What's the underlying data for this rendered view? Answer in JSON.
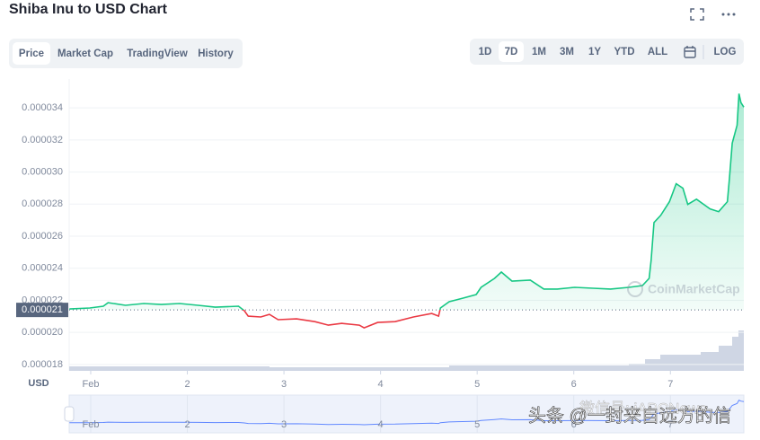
{
  "header": {
    "title": "Shiba Inu to USD Chart"
  },
  "tabs": [
    "Price",
    "Market Cap",
    "TradingView",
    "History"
  ],
  "selected_tab": 0,
  "ranges": [
    "1D",
    "7D",
    "1M",
    "3M",
    "1Y",
    "YTD",
    "ALL",
    "LOG"
  ],
  "selected_range": 1,
  "overlay": [
    "微信号: iAPCNews",
    "头条 @一封来自远方的信"
  ],
  "chart_data": {
    "type": "line",
    "y_axis_label": "USD",
    "watermark": "CoinMarketCap",
    "x": [
      0.78,
      0.99,
      1.13,
      1.18,
      1.36,
      1.55,
      1.73,
      1.92,
      2.11,
      2.29,
      2.53,
      2.59,
      2.63,
      2.76,
      2.85,
      2.94,
      3.13,
      3.32,
      3.46,
      3.6,
      3.78,
      3.83,
      3.97,
      4.15,
      4.34,
      4.53,
      4.6,
      4.62,
      4.71,
      4.85,
      4.99,
      5.04,
      5.18,
      5.25,
      5.36,
      5.55,
      5.69,
      5.83,
      6.01,
      6.2,
      6.38,
      6.57,
      6.71,
      6.78,
      6.8,
      6.83,
      6.9,
      6.99,
      7.06,
      7.13,
      7.18,
      7.27,
      7.41,
      7.5,
      7.59,
      7.61,
      7.64,
      7.69,
      7.71,
      7.73,
      7.76
    ],
    "values": [
      2.146e-05,
      2.152e-05,
      2.163e-05,
      2.185e-05,
      2.169e-05,
      2.18e-05,
      2.174e-05,
      2.18e-05,
      2.169e-05,
      2.157e-05,
      2.163e-05,
      2.135e-05,
      2.101e-05,
      2.096e-05,
      2.112e-05,
      2.079e-05,
      2.084e-05,
      2.067e-05,
      2.045e-05,
      2.056e-05,
      2.045e-05,
      2.028e-05,
      2.062e-05,
      2.067e-05,
      2.096e-05,
      2.118e-05,
      2.101e-05,
      2.152e-05,
      2.191e-05,
      2.213e-05,
      2.236e-05,
      2.281e-05,
      2.337e-05,
      2.376e-05,
      2.32e-05,
      2.326e-05,
      2.27e-05,
      2.27e-05,
      2.281e-05,
      2.275e-05,
      2.27e-05,
      2.281e-05,
      2.292e-05,
      2.337e-05,
      2.449e-05,
      2.685e-05,
      2.73e-05,
      2.815e-05,
      2.927e-05,
      2.899e-05,
      2.798e-05,
      2.831e-05,
      2.77e-05,
      2.753e-05,
      2.815e-05,
      2.955e-05,
      3.18e-05,
      3.292e-05,
      3.489e-05,
      3.433e-05,
      3.405e-05
    ],
    "up_color": "#16c784",
    "down_color": "#ea3943",
    "baseline": {
      "value": 2.14e-05,
      "label": "0.000021"
    },
    "xlim": [
      0.777,
      7.76
    ],
    "ylim": [
      1.76e-05,
      3.58e-05
    ],
    "xticks": [
      {
        "value": 1,
        "label": "Feb"
      },
      2,
      3,
      4,
      5,
      6,
      7
    ],
    "yticks": [
      1.8e-05,
      {
        "value": 2e-05,
        "label": "0.000020"
      },
      2.2e-05,
      2.4e-05,
      2.6e-05,
      2.8e-05,
      {
        "value": 3e-05,
        "label": "0.000030"
      },
      3.2e-05,
      3.4e-05
    ],
    "grid": true
  }
}
